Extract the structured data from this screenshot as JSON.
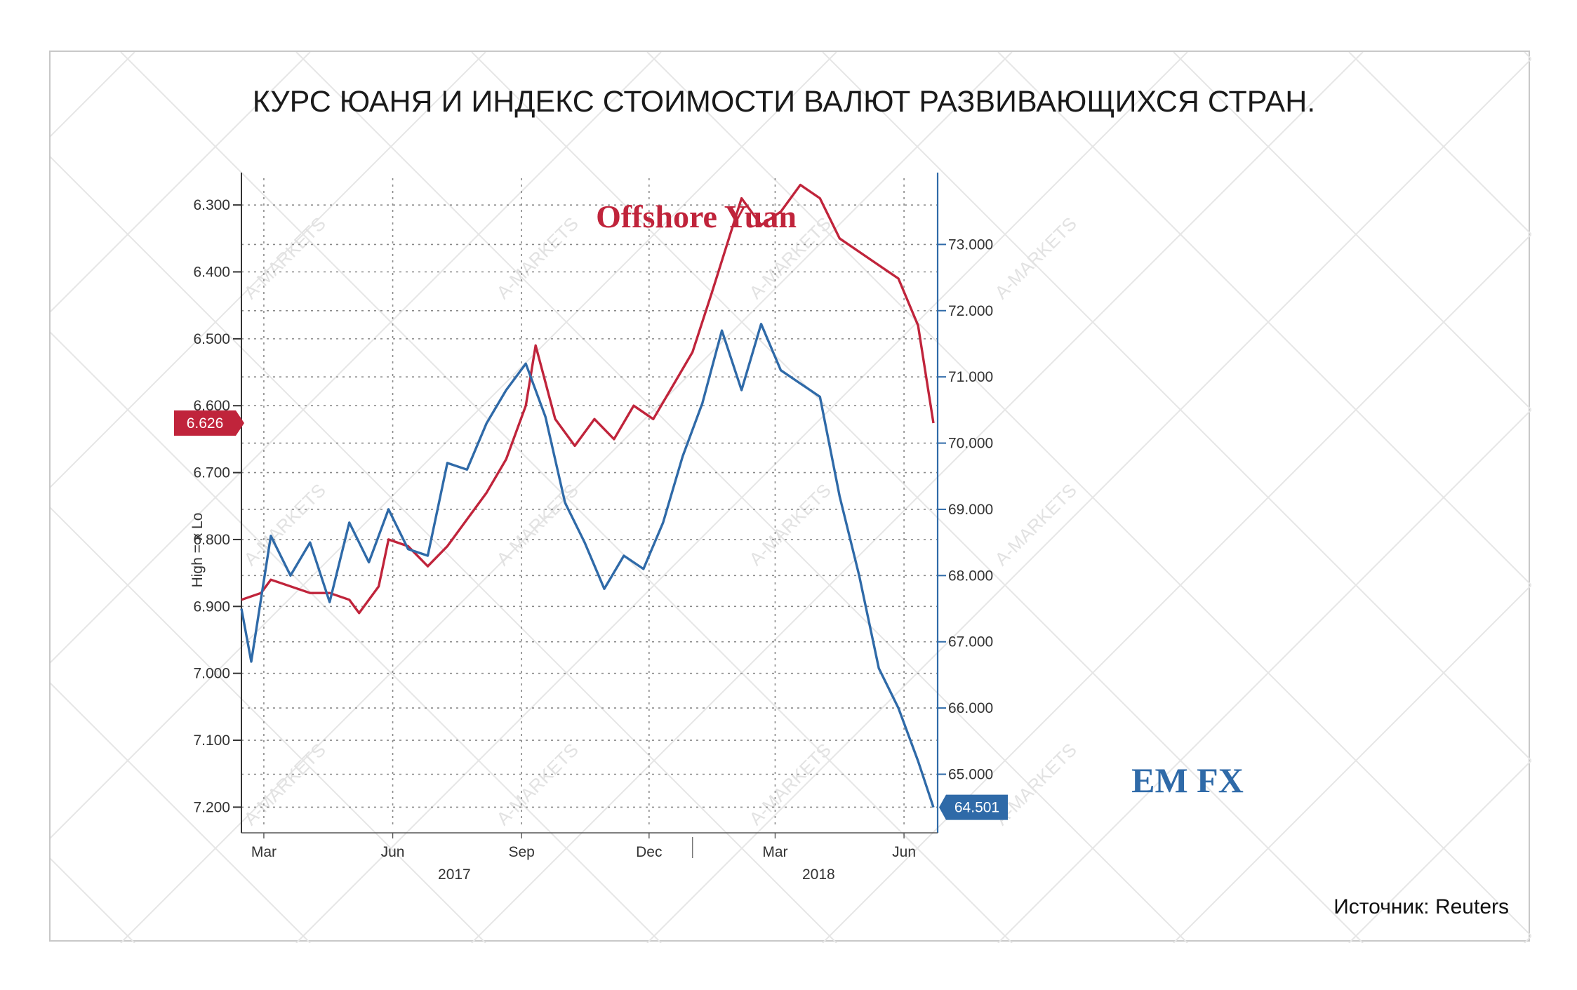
{
  "title": "КУРС ЮАНЯ И ИНДЕКС СТОИМОСТИ ВАЛЮТ РАЗВИВАЮЩИХСЯ СТРАН.",
  "source": "Источник: Reuters",
  "watermark": "A-MARKETS",
  "left_axis_note": "High = x Lo",
  "colors": {
    "yuan": "#c0243b",
    "emfx": "#2f6aa8",
    "grid": "#8a8a8a"
  },
  "chart_data": {
    "type": "line",
    "title": "КУРС ЮАНЯ И ИНДЕКС СТОИМОСТИ ВАЛЮТ РАЗВИВАЮЩИХСЯ СТРАН.",
    "grid": true,
    "x_range": [
      "2017-02-13",
      "2018-06-25"
    ],
    "x_ticks": [
      {
        "date": "2017-03-01",
        "label": "Mar"
      },
      {
        "date": "2017-06-01",
        "label": "Jun"
      },
      {
        "date": "2017-09-01",
        "label": "Sep"
      },
      {
        "date": "2017-12-01",
        "label": "Dec"
      },
      {
        "date": "2018-03-01",
        "label": "Mar"
      },
      {
        "date": "2018-06-01",
        "label": "Jun"
      }
    ],
    "year_labels": [
      {
        "date": "2017-07-15",
        "label": "2017"
      },
      {
        "date": "2018-04-01",
        "label": "2018"
      }
    ],
    "left_axis": {
      "inverted": true,
      "range": [
        6.26,
        7.23
      ],
      "ticks": [
        "6.300",
        "6.400",
        "6.500",
        "6.600",
        "6.700",
        "6.800",
        "6.900",
        "7.000",
        "7.100",
        "7.200"
      ],
      "last_value_label": "6.626"
    },
    "right_axis": {
      "range": [
        64.2,
        74.0
      ],
      "ticks": [
        "65.000",
        "66.000",
        "67.000",
        "68.000",
        "69.000",
        "70.000",
        "71.000",
        "72.000",
        "73.000"
      ],
      "last_value_label": "64.501"
    },
    "series": [
      {
        "name": "Offshore Yuan",
        "axis": "left",
        "points": [
          [
            "2017-02-13",
            6.89
          ],
          [
            "2017-02-27",
            6.88
          ],
          [
            "2017-03-06",
            6.86
          ],
          [
            "2017-03-20",
            6.87
          ],
          [
            "2017-04-03",
            6.88
          ],
          [
            "2017-04-17",
            6.88
          ],
          [
            "2017-05-01",
            6.89
          ],
          [
            "2017-05-08",
            6.91
          ],
          [
            "2017-05-22",
            6.87
          ],
          [
            "2017-05-29",
            6.8
          ],
          [
            "2017-06-12",
            6.81
          ],
          [
            "2017-06-26",
            6.84
          ],
          [
            "2017-07-10",
            6.81
          ],
          [
            "2017-07-24",
            6.77
          ],
          [
            "2017-08-07",
            6.73
          ],
          [
            "2017-08-21",
            6.68
          ],
          [
            "2017-09-04",
            6.6
          ],
          [
            "2017-09-11",
            6.51
          ],
          [
            "2017-09-25",
            6.62
          ],
          [
            "2017-10-09",
            6.66
          ],
          [
            "2017-10-23",
            6.62
          ],
          [
            "2017-11-06",
            6.65
          ],
          [
            "2017-11-20",
            6.6
          ],
          [
            "2017-12-04",
            6.62
          ],
          [
            "2017-12-18",
            6.57
          ],
          [
            "2018-01-01",
            6.52
          ],
          [
            "2018-01-15",
            6.43
          ],
          [
            "2018-02-05",
            6.29
          ],
          [
            "2018-02-19",
            6.33
          ],
          [
            "2018-03-05",
            6.31
          ],
          [
            "2018-03-19",
            6.27
          ],
          [
            "2018-04-02",
            6.29
          ],
          [
            "2018-04-16",
            6.35
          ],
          [
            "2018-04-30",
            6.37
          ],
          [
            "2018-05-14",
            6.39
          ],
          [
            "2018-05-28",
            6.41
          ],
          [
            "2018-06-11",
            6.48
          ],
          [
            "2018-06-22",
            6.626
          ]
        ]
      },
      {
        "name": "EM FX",
        "axis": "right",
        "points": [
          [
            "2017-02-13",
            67.5
          ],
          [
            "2017-02-20",
            66.7
          ],
          [
            "2017-03-06",
            68.6
          ],
          [
            "2017-03-20",
            68.0
          ],
          [
            "2017-04-03",
            68.5
          ],
          [
            "2017-04-17",
            67.6
          ],
          [
            "2017-05-01",
            68.8
          ],
          [
            "2017-05-15",
            68.2
          ],
          [
            "2017-05-29",
            69.0
          ],
          [
            "2017-06-12",
            68.4
          ],
          [
            "2017-06-26",
            68.3
          ],
          [
            "2017-07-10",
            69.7
          ],
          [
            "2017-07-24",
            69.6
          ],
          [
            "2017-08-07",
            70.3
          ],
          [
            "2017-08-21",
            70.8
          ],
          [
            "2017-09-04",
            71.2
          ],
          [
            "2017-09-18",
            70.4
          ],
          [
            "2017-10-02",
            69.1
          ],
          [
            "2017-10-16",
            68.5
          ],
          [
            "2017-10-30",
            67.8
          ],
          [
            "2017-11-13",
            68.3
          ],
          [
            "2017-11-27",
            68.1
          ],
          [
            "2017-12-11",
            68.8
          ],
          [
            "2017-12-25",
            69.8
          ],
          [
            "2018-01-08",
            70.6
          ],
          [
            "2018-01-22",
            71.7
          ],
          [
            "2018-02-05",
            70.8
          ],
          [
            "2018-02-19",
            71.8
          ],
          [
            "2018-03-05",
            71.1
          ],
          [
            "2018-03-19",
            70.9
          ],
          [
            "2018-04-02",
            70.7
          ],
          [
            "2018-04-16",
            69.2
          ],
          [
            "2018-04-30",
            68.0
          ],
          [
            "2018-05-14",
            66.6
          ],
          [
            "2018-05-28",
            66.0
          ],
          [
            "2018-06-11",
            65.2
          ],
          [
            "2018-06-22",
            64.501
          ]
        ]
      }
    ],
    "annotations": [
      {
        "text": "Offshore Yuan",
        "series": "Offshore Yuan"
      },
      {
        "text": "EM FX",
        "series": "EM FX"
      }
    ]
  }
}
